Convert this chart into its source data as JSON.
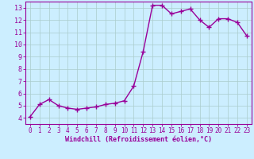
{
  "x": [
    0,
    1,
    2,
    3,
    4,
    5,
    6,
    7,
    8,
    9,
    10,
    11,
    12,
    13,
    14,
    15,
    16,
    17,
    18,
    19,
    20,
    21,
    22,
    23
  ],
  "y": [
    4.1,
    5.1,
    5.5,
    5.0,
    4.8,
    4.7,
    4.8,
    4.9,
    5.1,
    5.2,
    5.4,
    6.6,
    9.4,
    13.2,
    13.2,
    12.5,
    12.7,
    12.9,
    12.0,
    11.4,
    12.1,
    12.1,
    11.8,
    10.7
  ],
  "line_color": "#990099",
  "marker": "+",
  "markersize": 4,
  "linewidth": 1.0,
  "bg_color": "#cceeff",
  "grid_color": "#aacccc",
  "xlabel": "Windchill (Refroidissement éolien,°C)",
  "ylabel": "",
  "xlim": [
    -0.5,
    23.5
  ],
  "ylim": [
    3.5,
    13.5
  ],
  "yticks": [
    4,
    5,
    6,
    7,
    8,
    9,
    10,
    11,
    12,
    13
  ],
  "xticks": [
    0,
    1,
    2,
    3,
    4,
    5,
    6,
    7,
    8,
    9,
    10,
    11,
    12,
    13,
    14,
    15,
    16,
    17,
    18,
    19,
    20,
    21,
    22,
    23
  ],
  "tick_color": "#990099",
  "label_color": "#990099",
  "axis_color": "#990099",
  "xlabel_fontsize": 6.0,
  "tick_fontsize_x": 5.5,
  "tick_fontsize_y": 6.0
}
